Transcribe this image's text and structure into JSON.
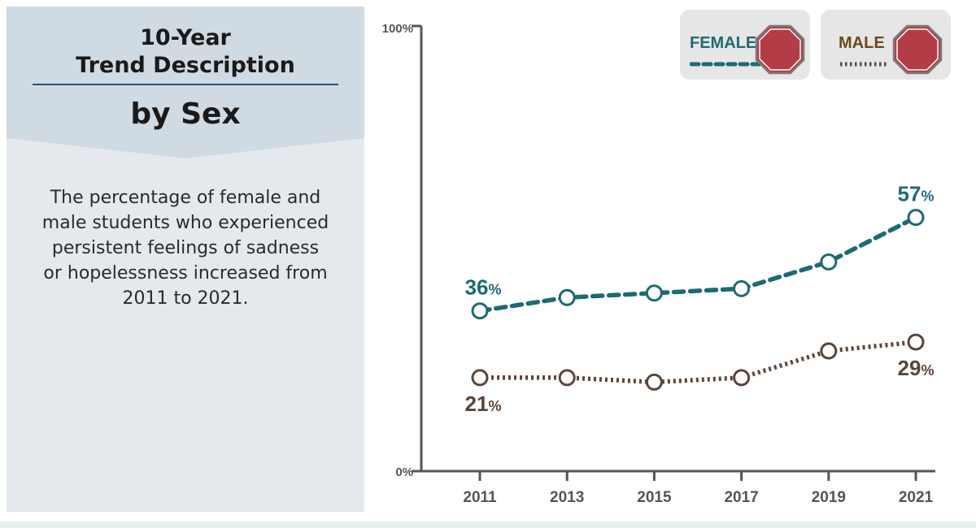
{
  "panel": {
    "title_line1": "10-Year",
    "title_line2": "Trend Description",
    "subtitle": "by Sex",
    "description": "The percentage of female and male students who experienced persistent feelings of sadness or hopelessness increased from 2011 to 2021."
  },
  "colors": {
    "female": "#1e6a73",
    "male": "#5c4438",
    "axis": "#555555",
    "stop_sign": "#b33d47",
    "panel_header": "#d0dae2",
    "panel_body": "#e5e9ed"
  },
  "icons": {
    "female": "stop-sign-icon",
    "male": "stop-sign-icon"
  },
  "chart_data": {
    "type": "line",
    "x": [
      "2011",
      "2013",
      "2015",
      "2017",
      "2019",
      "2021"
    ],
    "ylim": [
      0,
      100
    ],
    "y_tick_labels": [
      "0%",
      "100%"
    ],
    "legend_position": "top-right",
    "grid": false,
    "series": [
      {
        "name": "FEMALE",
        "values": [
          36,
          39,
          40,
          41,
          47,
          57
        ],
        "style": "dashed",
        "labels": [
          {
            "index": 0,
            "value": "36",
            "unit": "%"
          },
          {
            "index": 5,
            "value": "57",
            "unit": "%"
          }
        ]
      },
      {
        "name": "MALE",
        "values": [
          21,
          21,
          20,
          21,
          27,
          29
        ],
        "style": "dotted",
        "labels": [
          {
            "index": 0,
            "value": "21",
            "unit": "%"
          },
          {
            "index": 5,
            "value": "29",
            "unit": "%"
          }
        ]
      }
    ]
  }
}
